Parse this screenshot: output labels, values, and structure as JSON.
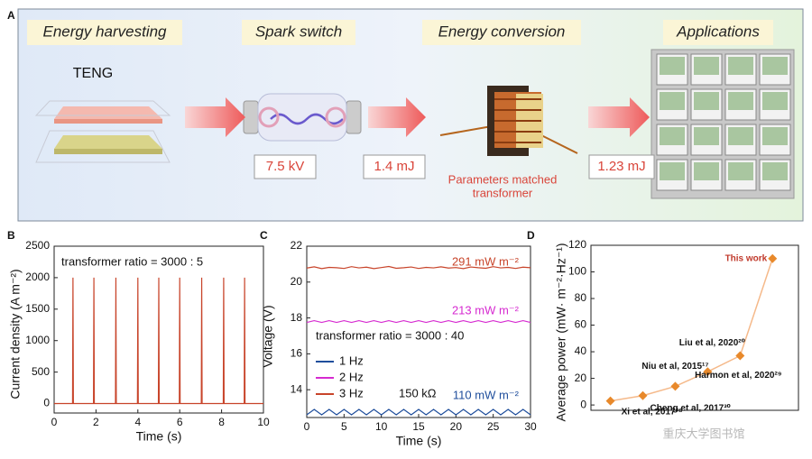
{
  "panel_a": {
    "panel_label": "A",
    "stages": [
      "Energy harvesting",
      "Spark switch",
      "Energy conversion",
      "Applications"
    ],
    "device": "TENG",
    "values": [
      "7.5 kV",
      "1.4 mJ",
      "1.23 mJ"
    ],
    "transformer_label": [
      "Parameters matched",
      "transformer"
    ]
  },
  "watermark": "重庆大学图书馆",
  "chart_data": [
    {
      "type": "line",
      "panel_label": "B",
      "annotation": "transformer ratio = 3000 : 5",
      "xlabel": "Time (s)",
      "ylabel": "Current density (A m⁻²)",
      "x": [
        0,
        0.88,
        0.9,
        0.92,
        1.88,
        1.9,
        1.92,
        2.93,
        2.95,
        2.97,
        3.98,
        4.0,
        4.02,
        4.98,
        5.0,
        5.02,
        5.98,
        6.0,
        6.02,
        7.03,
        7.05,
        7.07,
        8.08,
        8.1,
        8.12,
        9.08,
        9.1,
        9.12,
        10
      ],
      "series": [
        {
          "color": "#c8442a",
          "values": [
            0,
            0,
            2000,
            0,
            0,
            2000,
            0,
            0,
            2000,
            0,
            0,
            2000,
            0,
            0,
            2000,
            0,
            0,
            2000,
            0,
            0,
            2000,
            0,
            0,
            2000,
            0,
            0,
            2000,
            0,
            0
          ]
        }
      ],
      "xlim": [
        0,
        10
      ],
      "xticks": [
        0,
        2,
        4,
        6,
        8,
        10
      ],
      "ylim": [
        -150,
        2500
      ],
      "yticks": [
        0,
        500,
        1000,
        1500,
        2000,
        2500
      ]
    },
    {
      "type": "line",
      "panel_label": "C",
      "annotations": [
        "291 mW m⁻²",
        "213 mW m⁻²",
        "110 mW m⁻²",
        "transformer ratio = 3000 :  40",
        "150 kΩ"
      ],
      "xlabel": "Time (s)",
      "ylabel": "Voltage (V)",
      "x": [
        0,
        1,
        2,
        3,
        4,
        5,
        6,
        7,
        8,
        9,
        10,
        11,
        12,
        13,
        14,
        15,
        16,
        17,
        18,
        19,
        20,
        21,
        22,
        23,
        24,
        25,
        26,
        27,
        28,
        29,
        30
      ],
      "series": [
        {
          "name": "1 Hz",
          "color": "#1f4e9c",
          "values": [
            12.6,
            12.9,
            12.6,
            12.9,
            12.6,
            12.9,
            12.6,
            12.9,
            12.6,
            12.9,
            12.6,
            12.9,
            12.6,
            12.9,
            12.6,
            12.9,
            12.6,
            12.9,
            12.6,
            12.9,
            12.6,
            12.9,
            12.6,
            12.9,
            12.6,
            12.9,
            12.6,
            12.9,
            12.6,
            12.9,
            12.6
          ]
        },
        {
          "name": "2 Hz",
          "color": "#d62ad0",
          "values": [
            17.75,
            17.85,
            17.75,
            17.85,
            17.75,
            17.85,
            17.75,
            17.85,
            17.75,
            17.85,
            17.75,
            17.85,
            17.75,
            17.85,
            17.75,
            17.85,
            17.75,
            17.85,
            17.75,
            17.85,
            17.75,
            17.85,
            17.75,
            17.85,
            17.75,
            17.85,
            17.75,
            17.85,
            17.75,
            17.85,
            17.75
          ]
        },
        {
          "name": "3 Hz",
          "color": "#c8442a",
          "values": [
            20.78,
            20.85,
            20.75,
            20.82,
            20.8,
            20.76,
            20.86,
            20.79,
            20.83,
            20.75,
            20.81,
            20.87,
            20.77,
            20.8,
            20.84,
            20.76,
            20.82,
            20.79,
            20.85,
            20.78,
            20.81,
            20.75,
            20.84,
            20.8,
            20.77,
            20.86,
            20.79,
            20.82,
            20.76,
            20.83,
            20.8
          ]
        }
      ],
      "xlim": [
        0,
        30
      ],
      "xticks": [
        0,
        5,
        10,
        15,
        20,
        25,
        30
      ],
      "ylim": [
        12.45,
        22
      ],
      "yticks": [
        14,
        16,
        18,
        20,
        22
      ]
    },
    {
      "type": "line",
      "panel_label": "D",
      "markers": "diamond",
      "ylabel": "Average power (mW· m⁻²·Hz⁻¹)",
      "categories": [
        "Xi et al, 2017²⁸",
        "Cheng et al, 2017³⁰",
        "Niu et al, 2015¹⁷",
        "Liu et al, 2020²⁰",
        "Harmon et al, 2020²⁹",
        "This work"
      ],
      "series": [
        {
          "color": "#e8892b",
          "line_color": "#f5b98a",
          "values": [
            3,
            7,
            14,
            25,
            37,
            110
          ]
        }
      ],
      "ylim": [
        -4,
        120
      ],
      "yticks": [
        0,
        20,
        40,
        60,
        80,
        100,
        120
      ]
    }
  ]
}
